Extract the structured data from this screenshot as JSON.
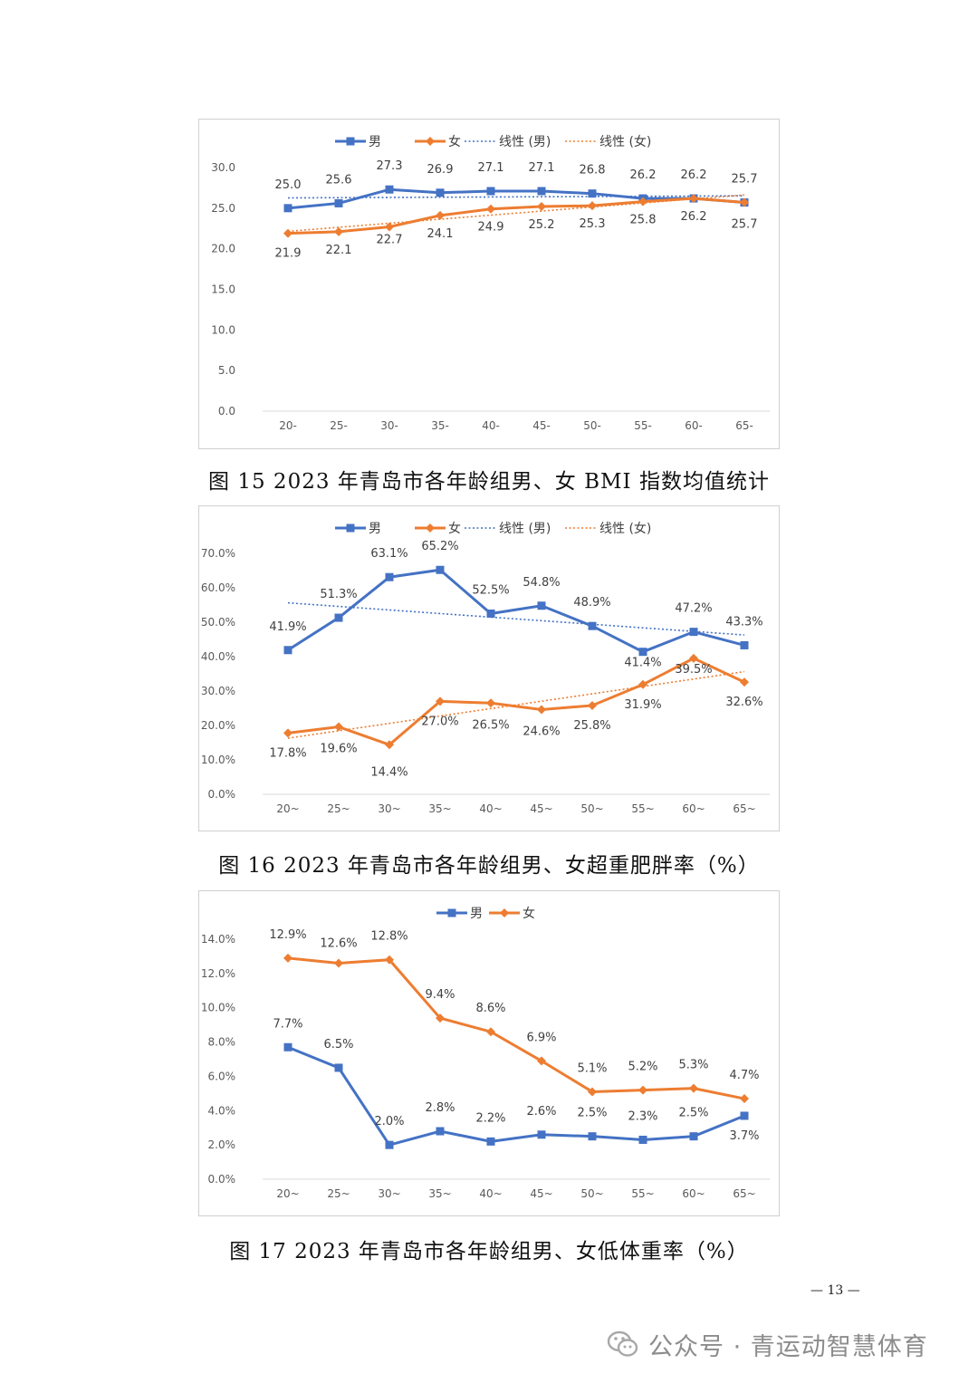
{
  "chart_data": [
    {
      "type": "line",
      "caption": "图 15  2023 年青岛市各年龄组男、女 BMI 指数均值统计",
      "categories": [
        "20-",
        "25-",
        "30-",
        "35-",
        "40-",
        "45-",
        "50-",
        "55-",
        "60-",
        "65-"
      ],
      "series": [
        {
          "name": "男",
          "values": [
            25.0,
            25.6,
            27.3,
            26.9,
            27.1,
            27.1,
            26.8,
            26.2,
            26.2,
            25.7
          ],
          "color": "#4472c4",
          "marker": "square"
        },
        {
          "name": "女",
          "values": [
            21.9,
            22.1,
            22.7,
            24.1,
            24.9,
            25.2,
            25.3,
            25.8,
            26.2,
            25.7
          ],
          "color": "#ed7d31",
          "marker": "diamond"
        }
      ],
      "trendlines": [
        {
          "name": "线性 (男)",
          "series": "男",
          "type": "linear",
          "color": "#4472c4"
        },
        {
          "name": "线性 (女)",
          "series": "女",
          "type": "linear",
          "color": "#ed7d31"
        }
      ],
      "ylim": [
        0,
        30
      ],
      "yticks": [
        "0.0",
        "5.0",
        "10.0",
        "15.0",
        "20.0",
        "25.0",
        "30.0"
      ],
      "value_format": "fixed1",
      "legend": "top-center",
      "grid": false
    },
    {
      "type": "line",
      "caption": "图 16  2023 年青岛市各年龄组男、女超重肥胖率（%）",
      "categories": [
        "20~",
        "25~",
        "30~",
        "35~",
        "40~",
        "45~",
        "50~",
        "55~",
        "60~",
        "65~"
      ],
      "series": [
        {
          "name": "男",
          "values": [
            41.9,
            51.3,
            63.1,
            65.2,
            52.5,
            54.8,
            48.9,
            41.4,
            47.2,
            43.3
          ],
          "color": "#4472c4",
          "marker": "square"
        },
        {
          "name": "女",
          "values": [
            17.8,
            19.6,
            14.4,
            27.0,
            26.5,
            24.6,
            25.8,
            31.9,
            39.5,
            32.6
          ],
          "color": "#ed7d31",
          "marker": "diamond"
        }
      ],
      "trendlines": [
        {
          "name": "线性 (男)",
          "series": "男",
          "type": "linear",
          "color": "#4472c4"
        },
        {
          "name": "线性 (女)",
          "series": "女",
          "type": "linear",
          "color": "#ed7d31"
        }
      ],
      "ylim": [
        0,
        70
      ],
      "yticks": [
        "0.0%",
        "10.0%",
        "20.0%",
        "30.0%",
        "40.0%",
        "50.0%",
        "60.0%",
        "70.0%"
      ],
      "value_format": "percent1",
      "legend": "top-center",
      "grid": false
    },
    {
      "type": "line",
      "caption": "图 17  2023 年青岛市各年龄组男、女低体重率（%）",
      "categories": [
        "20~",
        "25~",
        "30~",
        "35~",
        "40~",
        "45~",
        "50~",
        "55~",
        "60~",
        "65~"
      ],
      "series": [
        {
          "name": "男",
          "values": [
            7.7,
            6.5,
            2.0,
            2.8,
            2.2,
            2.6,
            2.5,
            2.3,
            2.5,
            3.7
          ],
          "color": "#4472c4",
          "marker": "square"
        },
        {
          "name": "女",
          "values": [
            12.9,
            12.6,
            12.8,
            9.4,
            8.6,
            6.9,
            5.1,
            5.2,
            5.3,
            4.7
          ],
          "color": "#ed7d31",
          "marker": "diamond"
        }
      ],
      "trendlines": [],
      "ylim": [
        0,
        14
      ],
      "yticks": [
        "0.0%",
        "2.0%",
        "4.0%",
        "6.0%",
        "8.0%",
        "10.0%",
        "12.0%",
        "14.0%"
      ],
      "value_format": "percent1",
      "legend": "top-center",
      "grid": false
    }
  ],
  "page": {
    "number": "— 13 —",
    "watermark_icon": "wechat-icon",
    "watermark_text": "公众号 · 青运动智慧体育"
  }
}
